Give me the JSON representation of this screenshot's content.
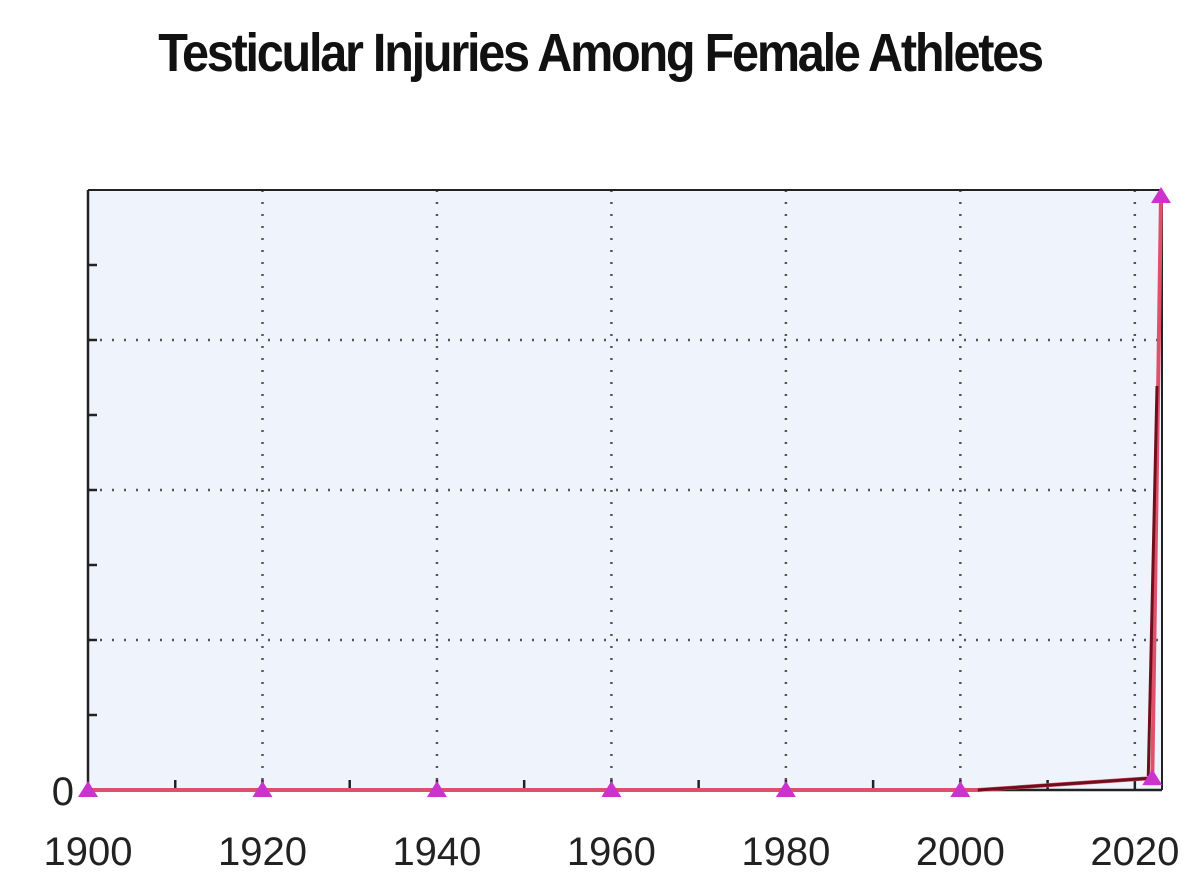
{
  "chart_data": {
    "type": "line",
    "title": "Testicular Injuries Among Female Athletes",
    "xlabel": "",
    "ylabel": "",
    "xlim": [
      1900,
      2023
    ],
    "ylim": [
      0,
      10
    ],
    "x_ticks": [
      1900,
      1920,
      1940,
      1960,
      1980,
      2000,
      2020
    ],
    "x_tick_labels": [
      "1900",
      "1920",
      "1940",
      "1960",
      "1980",
      "2000",
      "2020"
    ],
    "y_tick_labels": [
      "0"
    ],
    "grid": true,
    "series": [
      {
        "x": [
          1900,
          1920,
          1940,
          1960,
          1980,
          2000,
          2002,
          2022,
          2023
        ],
        "y": [
          0,
          0,
          0,
          0,
          0,
          0,
          0,
          0.2,
          10
        ],
        "markers_at": [
          1900,
          1920,
          1940,
          1960,
          1980,
          2000,
          2022,
          2023
        ]
      }
    ],
    "colors": {
      "line": "#e0506a",
      "line_dark": "#6e0f1e",
      "marker": "#cc33cc",
      "plot_bg": "#eef3fc",
      "grid": "#555555",
      "axis": "#222222"
    }
  }
}
